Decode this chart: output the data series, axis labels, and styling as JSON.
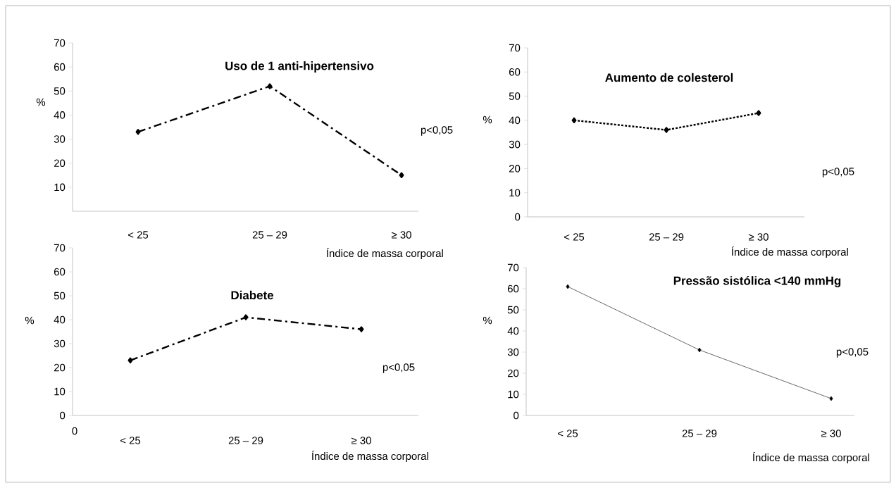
{
  "chart_data": [
    {
      "type": "line",
      "title": "Uso de 1 anti-hipertensivo",
      "xlabel": "Índice de massa corporal",
      "ylabel": "%",
      "categories": [
        "< 25",
        "25 – 29",
        "≥ 30"
      ],
      "series": [
        {
          "color": "#000000",
          "values": [
            33,
            52,
            15
          ]
        }
      ],
      "ylim": [
        0,
        70
      ],
      "yticks": [
        10,
        20,
        30,
        40,
        50,
        60,
        70
      ],
      "marker": "diamond",
      "line_style": "dashdot",
      "annotations": [
        "p<0,05"
      ]
    },
    {
      "type": "line",
      "title": "Aumento de colesterol",
      "xlabel": "Índice de massa corporal",
      "ylabel": "%",
      "categories": [
        "< 25",
        "25 – 29",
        "≥ 30"
      ],
      "series": [
        {
          "color": "#000000",
          "values": [
            40,
            36,
            43
          ]
        }
      ],
      "ylim": [
        0,
        70
      ],
      "yticks": [
        0,
        10,
        20,
        30,
        40,
        50,
        60,
        70
      ],
      "marker": "diamond",
      "line_style": "dotted",
      "annotations": [
        "p<0,05"
      ]
    },
    {
      "type": "line",
      "title": "Diabete",
      "xlabel": "Índice de massa corporal",
      "ylabel": "%",
      "categories": [
        "< 25",
        "25 – 29",
        "≥ 30"
      ],
      "series": [
        {
          "color": "#000000",
          "values": [
            23,
            41,
            36
          ]
        }
      ],
      "ylim": [
        0,
        70
      ],
      "yticks": [
        0,
        10,
        20,
        30,
        40,
        50,
        60,
        70
      ],
      "marker": "diamond",
      "line_style": "dashdot",
      "annotations": [
        "0",
        "p<0,05"
      ]
    },
    {
      "type": "line",
      "title": "Pressão sistólica <140 mmHg",
      "xlabel": "Índice de massa corporal",
      "ylabel": "%",
      "categories": [
        "< 25",
        "25 – 29",
        "≥ 30"
      ],
      "series": [
        {
          "color": "#000000",
          "values": [
            61,
            31,
            8
          ]
        }
      ],
      "ylim": [
        0,
        70
      ],
      "yticks": [
        0,
        10,
        20,
        30,
        40,
        50,
        60,
        70
      ],
      "marker": "diamond",
      "line_style": "solid",
      "annotations": [
        "p<0,05"
      ]
    }
  ]
}
